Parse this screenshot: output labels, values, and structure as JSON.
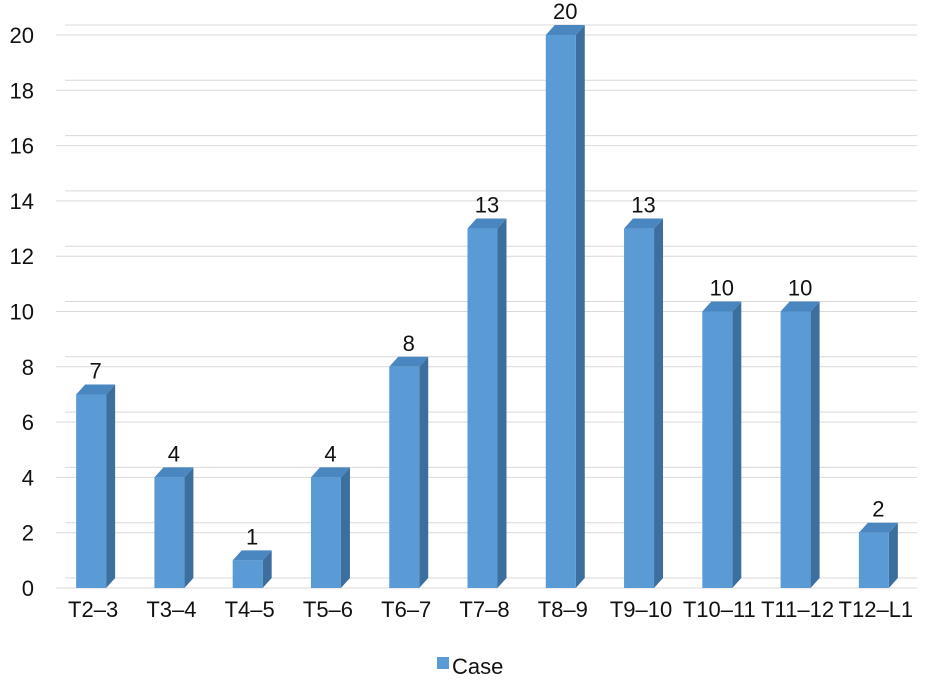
{
  "chart_data": {
    "type": "bar",
    "title": "",
    "xlabel": "",
    "ylabel": "",
    "categories": [
      "T2–3",
      "T3–4",
      "T4–5",
      "T5–6",
      "T6–7",
      "T7–8",
      "T8–9",
      "T9–10",
      "T10–11",
      "T11–12",
      "T12–L1"
    ],
    "series": [
      {
        "name": "Case",
        "values": [
          7,
          4,
          1,
          4,
          8,
          13,
          20,
          13,
          10,
          10,
          2
        ],
        "color": "#5b9bd5",
        "side_color": "#3d6f9e",
        "top_color": "#4a86bf"
      }
    ],
    "data_labels": [
      "7",
      "4",
      "1",
      "4",
      "8",
      "13",
      "20",
      "13",
      "10",
      "10",
      "2"
    ],
    "ylim": [
      0,
      20
    ],
    "y_ticks": [
      "0",
      "2",
      "4",
      "6",
      "8",
      "10",
      "12",
      "14",
      "16",
      "18",
      "20"
    ],
    "grid": true,
    "grid_color": "#d9d9d9",
    "legend": {
      "position": "bottom",
      "label": "Case"
    },
    "style": "3d-column"
  }
}
